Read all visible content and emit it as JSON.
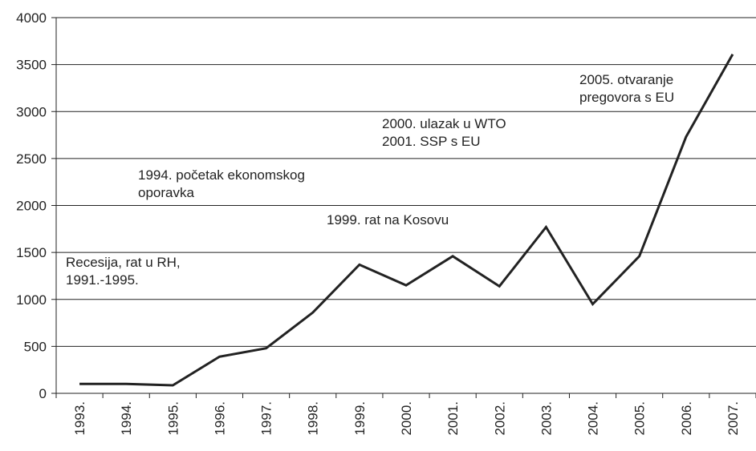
{
  "chart_data": {
    "type": "line",
    "categories": [
      "1993.",
      "1994.",
      "1995.",
      "1996.",
      "1997.",
      "1998.",
      "1999.",
      "2000.",
      "2001.",
      "2002.",
      "2003.",
      "2004.",
      "2005.",
      "2006.",
      "2007."
    ],
    "series": [
      {
        "color": "#222222",
        "values": [
          100,
          100,
          85,
          390,
          480,
          860,
          1370,
          1150,
          1460,
          1140,
          1770,
          950,
          1460,
          2730,
          3610
        ]
      }
    ],
    "ylim": [
      0,
      4000
    ],
    "yticks": [
      0,
      500,
      1000,
      1500,
      2000,
      2500,
      3000,
      3500,
      4000
    ],
    "grid": true,
    "annotations": [
      {
        "lines": [
          "Recesija, rat u RH,",
          "1991.-1995."
        ]
      },
      {
        "lines": [
          "1994. početak ekonomskog",
          "oporavka"
        ]
      },
      {
        "lines": [
          "1999. rat na Kosovu"
        ]
      },
      {
        "lines": [
          "2000. ulazak u WTO",
          "2001. SSP s EU"
        ]
      },
      {
        "lines": [
          "2005. otvaranje",
          "pregovora s EU"
        ]
      }
    ]
  }
}
